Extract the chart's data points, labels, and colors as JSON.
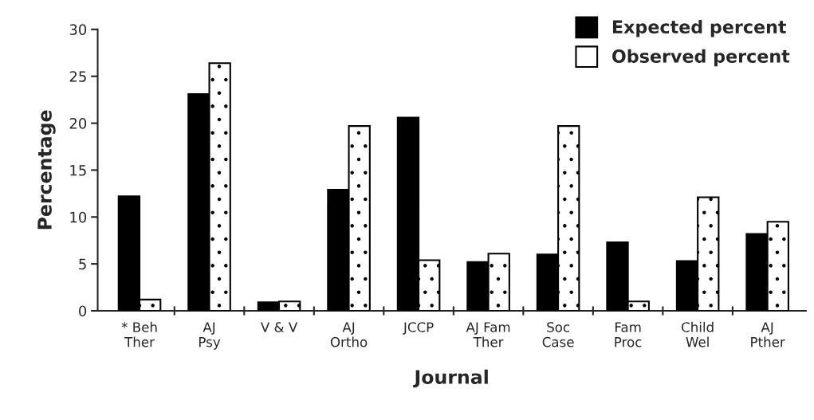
{
  "chart_data": {
    "type": "bar",
    "xlabel": "Journal",
    "ylabel": "Percentage",
    "categories": [
      "* Beh\nTher",
      "AJ\nPsy",
      "V & V",
      "AJ\nOrtho",
      "JCCP",
      "AJ Fam\nTher",
      "Soc\nCase",
      "Fam\nProc",
      "Child\nWel",
      "AJ\nPther"
    ],
    "series": [
      {
        "name": "Expected percent",
        "color": "#000000",
        "values": [
          12.2,
          23.1,
          0.9,
          12.9,
          20.6,
          5.2,
          6.0,
          7.3,
          5.3,
          8.2
        ]
      },
      {
        "name": "Observed percent",
        "color": "#ffffff",
        "values": [
          1.2,
          26.4,
          1.0,
          19.7,
          5.4,
          6.1,
          19.7,
          1.0,
          12.1,
          9.5
        ]
      }
    ],
    "ylim": [
      0,
      30
    ],
    "yticks": [
      0,
      5,
      10,
      15,
      20,
      25,
      30
    ],
    "grid": false,
    "legend": "top right"
  }
}
